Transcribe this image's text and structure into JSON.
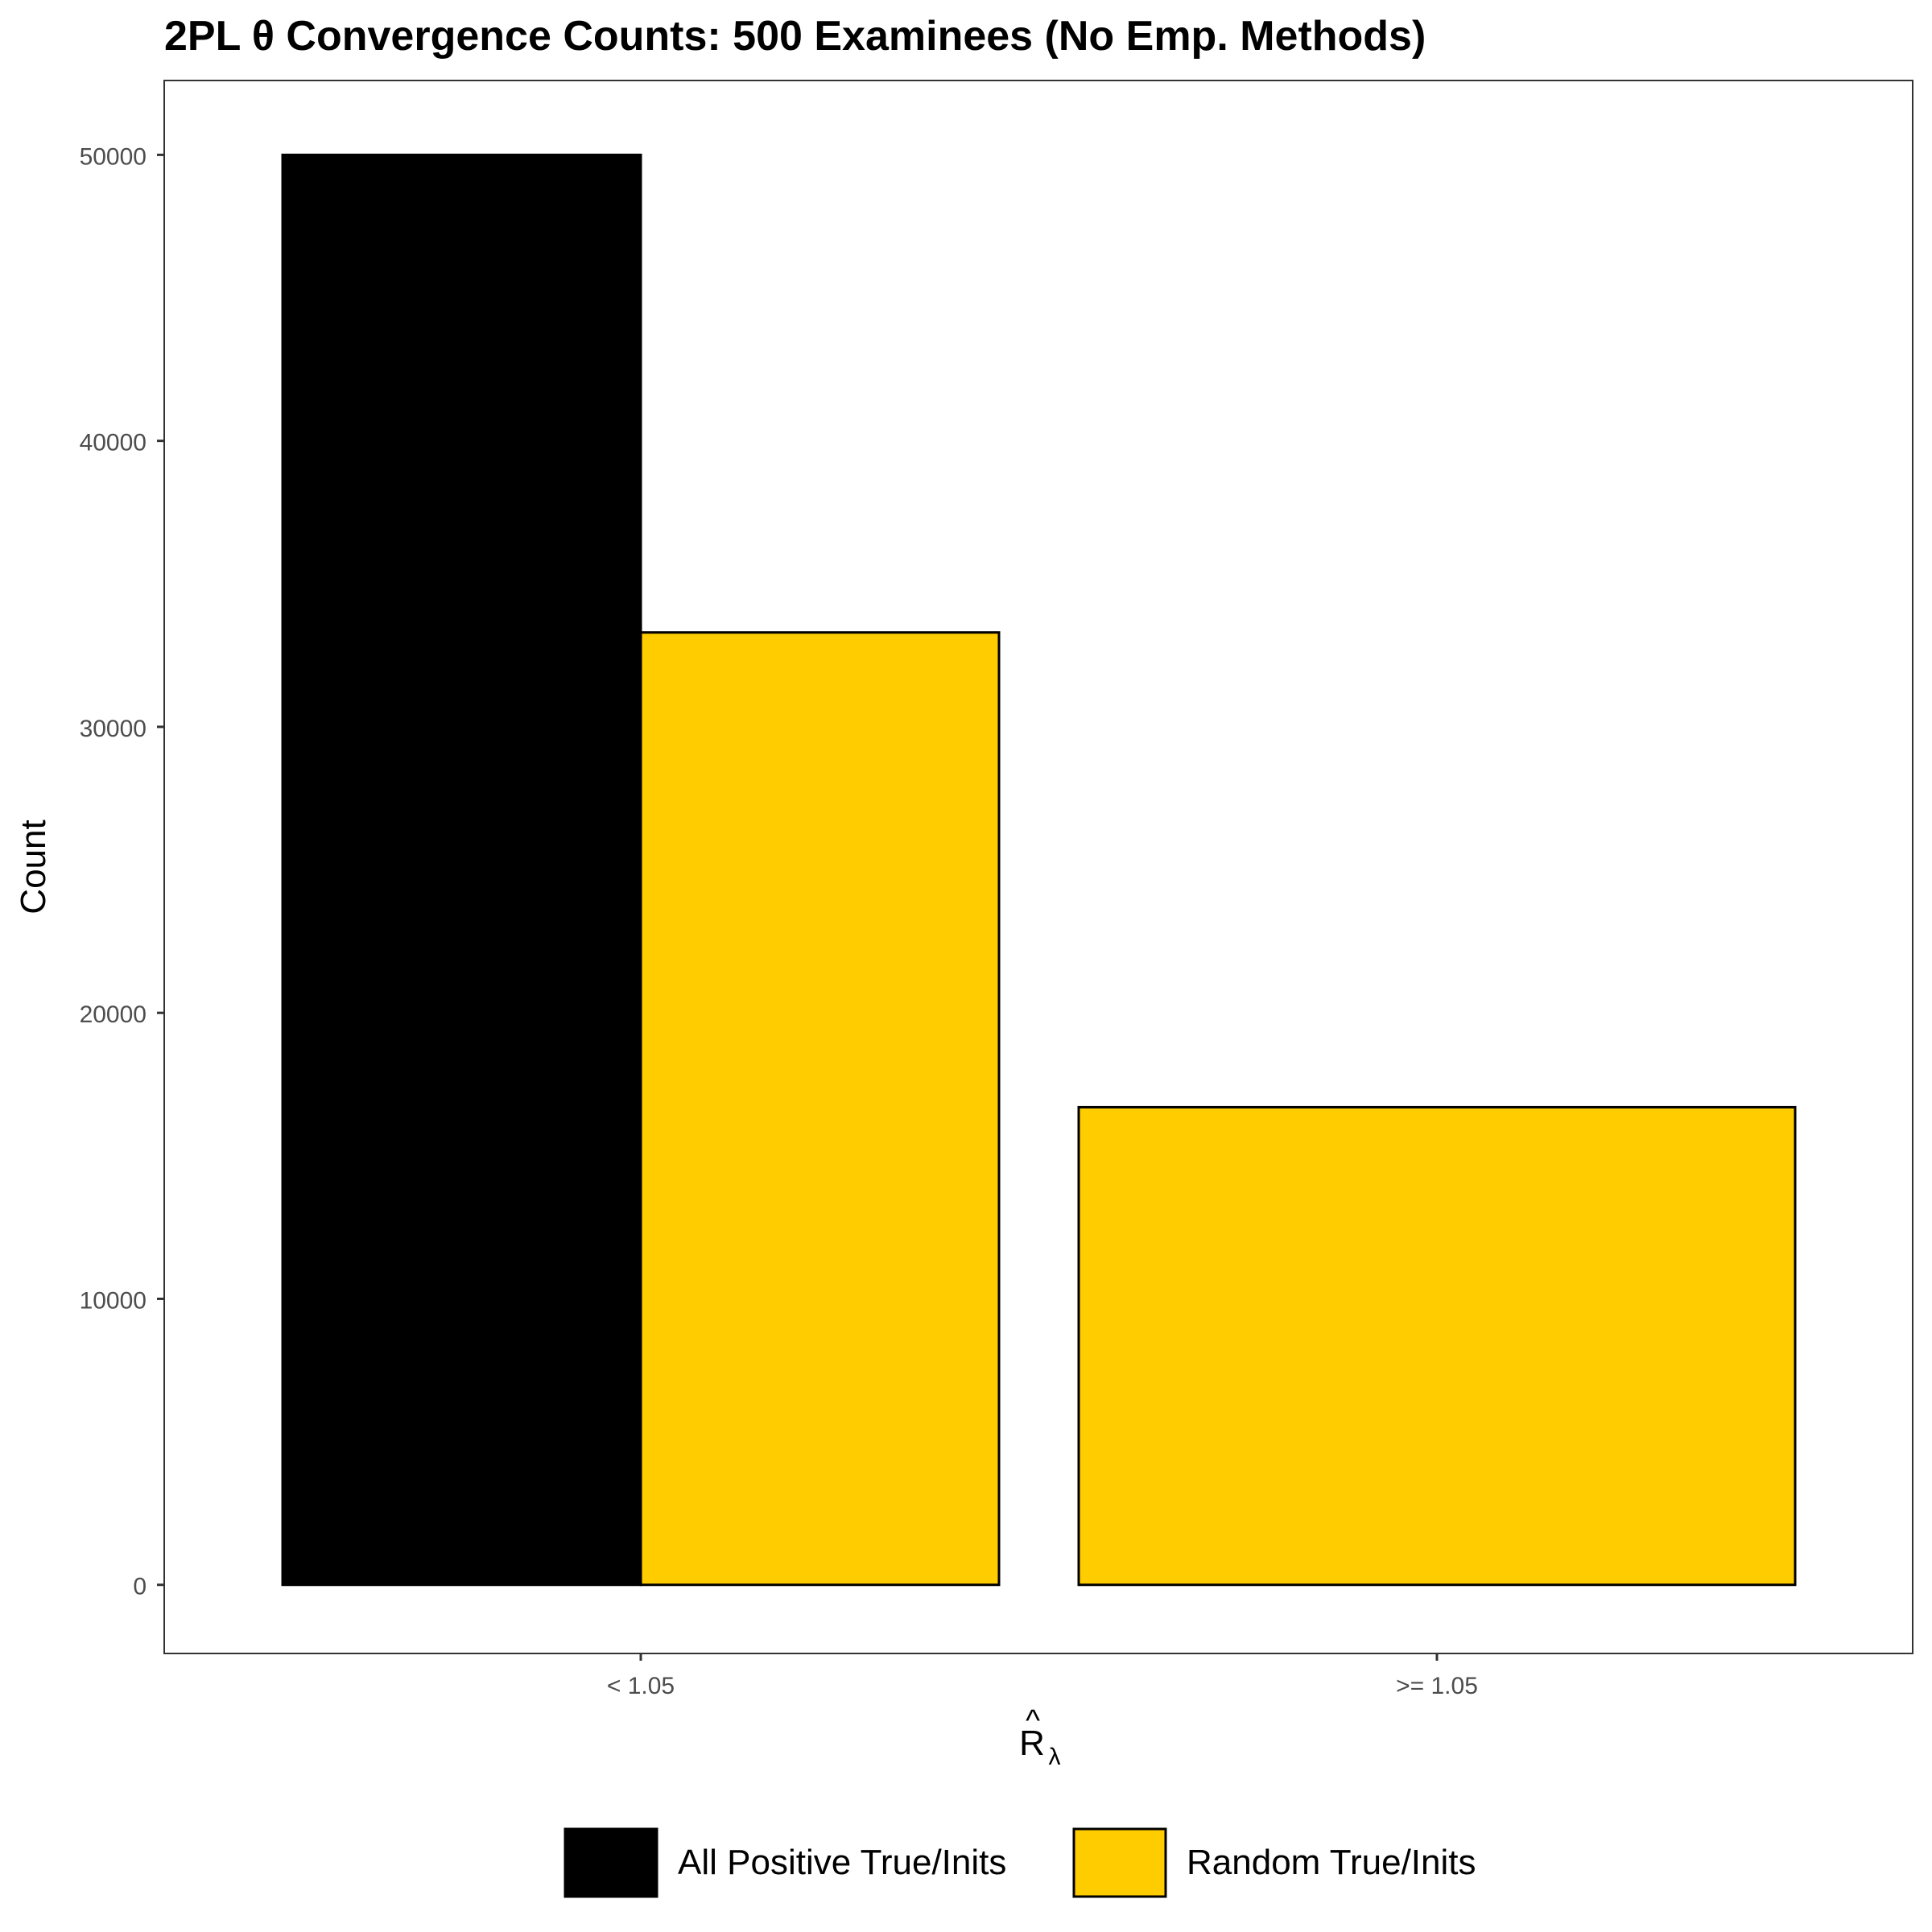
{
  "chart_data": {
    "type": "bar",
    "title": "2PL θ Convergence Counts: 500 Examinees (No Emp. Methods)",
    "xlabel": {
      "base": "R",
      "hat": "^",
      "subscript": "λ"
    },
    "ylabel": "Count",
    "categories": [
      "< 1.05",
      ">= 1.05"
    ],
    "series": [
      {
        "name": "All Positive True/Inits",
        "color": "#000000",
        "values": [
          50000,
          0
        ]
      },
      {
        "name": "Random True/Inits",
        "color": "#FFCC00",
        "values": [
          33300,
          16700
        ]
      }
    ],
    "y_ticks": [
      "0",
      "10000",
      "20000",
      "30000",
      "40000",
      "50000"
    ],
    "ylim": [
      -2400,
      52600
    ],
    "grid": false,
    "legend_position": "bottom",
    "bar_mode": "dodge"
  }
}
